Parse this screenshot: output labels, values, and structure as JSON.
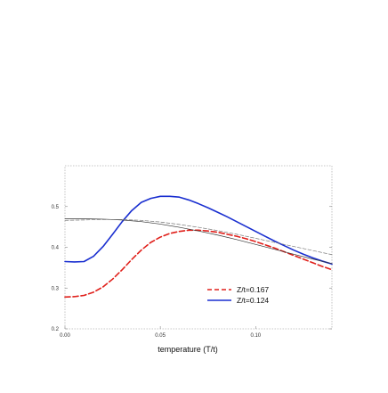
{
  "chart_data": {
    "type": "line",
    "title": "",
    "xlabel": "temperature (T/t)",
    "ylabel": "",
    "xlim": [
      0.0,
      0.14
    ],
    "ylim": [
      0.2,
      0.6
    ],
    "x_ticks": [
      {
        "value": 0.0,
        "label": "0.00"
      },
      {
        "value": 0.05,
        "label": "0.05"
      },
      {
        "value": 0.1,
        "label": "0.10"
      }
    ],
    "y_ticks": [
      {
        "value": 0.2,
        "label": "0.2"
      },
      {
        "value": 0.3,
        "label": "0.3"
      },
      {
        "value": 0.4,
        "label": "0.4"
      },
      {
        "value": 0.5,
        "label": "0.5"
      }
    ],
    "grid": false,
    "legend_position": "lower-right",
    "series": [
      {
        "name": "Z/t=0.167",
        "color": "#e0201b",
        "style": "dashed",
        "x": [
          0.0,
          0.005,
          0.01,
          0.015,
          0.02,
          0.025,
          0.03,
          0.035,
          0.04,
          0.045,
          0.05,
          0.055,
          0.06,
          0.065,
          0.07,
          0.075,
          0.08,
          0.085,
          0.09,
          0.095,
          0.1,
          0.105,
          0.11,
          0.115,
          0.12,
          0.125,
          0.13,
          0.135,
          0.14
        ],
        "y": [
          0.278,
          0.279,
          0.282,
          0.29,
          0.303,
          0.322,
          0.345,
          0.37,
          0.393,
          0.412,
          0.425,
          0.434,
          0.439,
          0.442,
          0.442,
          0.44,
          0.437,
          0.432,
          0.427,
          0.421,
          0.414,
          0.406,
          0.398,
          0.389,
          0.38,
          0.371,
          0.362,
          0.353,
          0.345
        ]
      },
      {
        "name": "Z/t=0.124",
        "color": "#1a2fd0",
        "style": "solid",
        "x": [
          0.0,
          0.005,
          0.01,
          0.015,
          0.02,
          0.025,
          0.03,
          0.035,
          0.04,
          0.045,
          0.05,
          0.055,
          0.06,
          0.065,
          0.07,
          0.075,
          0.08,
          0.085,
          0.09,
          0.095,
          0.1,
          0.105,
          0.11,
          0.115,
          0.12,
          0.125,
          0.13,
          0.135,
          0.14
        ],
        "y": [
          0.365,
          0.364,
          0.365,
          0.378,
          0.402,
          0.432,
          0.463,
          0.49,
          0.51,
          0.52,
          0.525,
          0.525,
          0.523,
          0.516,
          0.507,
          0.497,
          0.486,
          0.475,
          0.463,
          0.451,
          0.439,
          0.427,
          0.415,
          0.404,
          0.393,
          0.383,
          0.374,
          0.366,
          0.359
        ]
      },
      {
        "name": "",
        "color": "#333333",
        "style": "thin-solid",
        "x": [
          0.0,
          0.01,
          0.02,
          0.03,
          0.04,
          0.05,
          0.06,
          0.07,
          0.08,
          0.09,
          0.1,
          0.11,
          0.12,
          0.13,
          0.14
        ],
        "y": [
          0.47,
          0.47,
          0.469,
          0.467,
          0.463,
          0.457,
          0.449,
          0.44,
          0.43,
          0.419,
          0.407,
          0.395,
          0.383,
          0.371,
          0.36
        ]
      },
      {
        "name": "",
        "color": "#777777",
        "style": "thin-dashed",
        "x": [
          0.0,
          0.01,
          0.02,
          0.03,
          0.04,
          0.05,
          0.06,
          0.07,
          0.08,
          0.09,
          0.1,
          0.11,
          0.12,
          0.13,
          0.14
        ],
        "y": [
          0.466,
          0.467,
          0.468,
          0.468,
          0.466,
          0.462,
          0.456,
          0.449,
          0.441,
          0.432,
          0.422,
          0.412,
          0.402,
          0.392,
          0.382
        ]
      }
    ],
    "legend": [
      {
        "label": "Z/t=0.167",
        "color": "#e0201b",
        "style": "dashed"
      },
      {
        "label": "Z/t=0.124",
        "color": "#1a2fd0",
        "style": "solid"
      }
    ]
  }
}
